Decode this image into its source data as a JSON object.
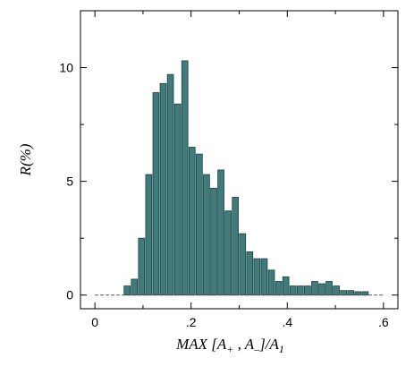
{
  "chart_data": {
    "type": "bar",
    "title": "",
    "xlabel": {
      "main": "MAX [A",
      "sub1": "+",
      "mid": " , A",
      "sub2": "–",
      "end": "]/A",
      "sub3": "1"
    },
    "ylabel": "R(%)",
    "xlim": [
      -0.03,
      0.63
    ],
    "ylim": [
      -0.6,
      12.5
    ],
    "grid": false,
    "x_ticks": [
      {
        "value": 0.0,
        "label": "0"
      },
      {
        "value": 0.2,
        "label": ".2"
      },
      {
        "value": 0.4,
        "label": ".4"
      },
      {
        "value": 0.6,
        "label": ".6"
      }
    ],
    "y_ticks": [
      {
        "value": 0,
        "label": "0"
      },
      {
        "value": 5,
        "label": "5"
      },
      {
        "value": 10,
        "label": "10"
      }
    ],
    "bin_width": 0.015,
    "bins": [
      {
        "x": 0.067,
        "y": 0.4
      },
      {
        "x": 0.082,
        "y": 0.7
      },
      {
        "x": 0.097,
        "y": 2.5
      },
      {
        "x": 0.112,
        "y": 5.3
      },
      {
        "x": 0.127,
        "y": 8.9
      },
      {
        "x": 0.142,
        "y": 9.3
      },
      {
        "x": 0.157,
        "y": 9.7
      },
      {
        "x": 0.172,
        "y": 8.4
      },
      {
        "x": 0.187,
        "y": 10.3
      },
      {
        "x": 0.202,
        "y": 6.5
      },
      {
        "x": 0.217,
        "y": 6.2
      },
      {
        "x": 0.232,
        "y": 5.3
      },
      {
        "x": 0.247,
        "y": 4.7
      },
      {
        "x": 0.262,
        "y": 5.5
      },
      {
        "x": 0.277,
        "y": 3.7
      },
      {
        "x": 0.292,
        "y": 4.3
      },
      {
        "x": 0.307,
        "y": 2.7
      },
      {
        "x": 0.322,
        "y": 1.9
      },
      {
        "x": 0.337,
        "y": 1.6
      },
      {
        "x": 0.352,
        "y": 1.6
      },
      {
        "x": 0.367,
        "y": 1.1
      },
      {
        "x": 0.382,
        "y": 0.6
      },
      {
        "x": 0.397,
        "y": 0.8
      },
      {
        "x": 0.412,
        "y": 0.4
      },
      {
        "x": 0.427,
        "y": 0.4
      },
      {
        "x": 0.442,
        "y": 0.4
      },
      {
        "x": 0.457,
        "y": 0.6
      },
      {
        "x": 0.472,
        "y": 0.5
      },
      {
        "x": 0.487,
        "y": 0.6
      },
      {
        "x": 0.502,
        "y": 0.4
      },
      {
        "x": 0.517,
        "y": 0.2
      },
      {
        "x": 0.532,
        "y": 0.2
      },
      {
        "x": 0.547,
        "y": 0.15
      },
      {
        "x": 0.562,
        "y": 0.15
      }
    ]
  }
}
